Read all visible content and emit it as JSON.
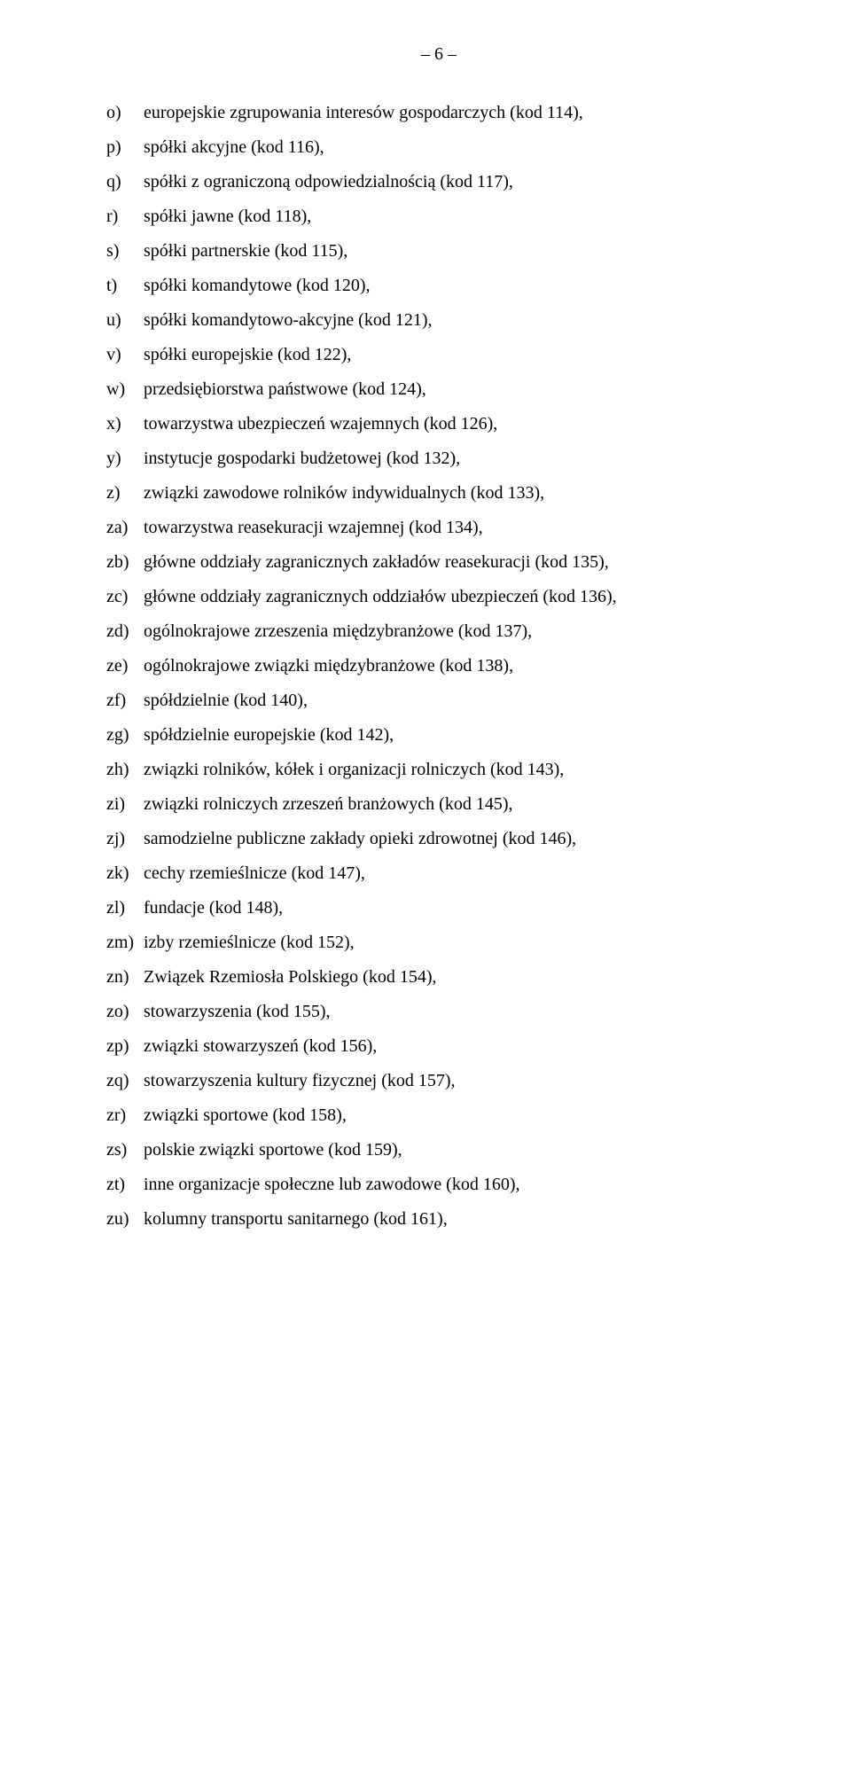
{
  "page_number": "– 6 –",
  "items": [
    {
      "marker": "o)",
      "text": "europejskie zgrupowania interesów gospodarczych (kod 114),"
    },
    {
      "marker": "p)",
      "text": "spółki akcyjne (kod 116),"
    },
    {
      "marker": "q)",
      "text": "spółki z ograniczoną odpowiedzialnością (kod 117),"
    },
    {
      "marker": "r)",
      "text": "spółki jawne (kod 118),"
    },
    {
      "marker": "s)",
      "text": "spółki partnerskie (kod 115),"
    },
    {
      "marker": "t)",
      "text": "spółki komandytowe (kod 120),"
    },
    {
      "marker": "u)",
      "text": "spółki komandytowo-akcyjne (kod 121),"
    },
    {
      "marker": "v)",
      "text": "spółki europejskie (kod 122),"
    },
    {
      "marker": "w)",
      "text": "przedsiębiorstwa państwowe (kod 124),"
    },
    {
      "marker": "x)",
      "text": "towarzystwa ubezpieczeń wzajemnych (kod 126),"
    },
    {
      "marker": "y)",
      "text": "instytucje gospodarki budżetowej (kod 132),"
    },
    {
      "marker": "z)",
      "text": "związki zawodowe rolników indywidualnych (kod 133),"
    },
    {
      "marker": "za)",
      "text": "towarzystwa reasekuracji wzajemnej (kod 134),"
    },
    {
      "marker": "zb)",
      "text": "główne oddziały zagranicznych zakładów reasekuracji (kod 135),"
    },
    {
      "marker": "zc)",
      "text": "główne oddziały zagranicznych oddziałów ubezpieczeń (kod 136),"
    },
    {
      "marker": "zd)",
      "text": "ogólnokrajowe zrzeszenia międzybranżowe (kod 137),"
    },
    {
      "marker": "ze)",
      "text": "ogólnokrajowe związki międzybranżowe (kod 138),"
    },
    {
      "marker": "zf)",
      "text": "spółdzielnie (kod 140),"
    },
    {
      "marker": "zg)",
      "text": "spółdzielnie europejskie (kod 142),"
    },
    {
      "marker": "zh)",
      "text": "związki rolników, kółek i organizacji rolniczych (kod 143),"
    },
    {
      "marker": "zi)",
      "text": "związki rolniczych zrzeszeń branżowych (kod 145),"
    },
    {
      "marker": "zj)",
      "text": "samodzielne publiczne zakłady opieki zdrowotnej (kod 146),"
    },
    {
      "marker": "zk)",
      "text": "cechy rzemieślnicze (kod 147),"
    },
    {
      "marker": "zl)",
      "text": "fundacje (kod 148),"
    },
    {
      "marker": "zm)",
      "text": "izby rzemieślnicze (kod 152),"
    },
    {
      "marker": "zn)",
      "text": "Związek Rzemiosła Polskiego (kod 154),"
    },
    {
      "marker": "zo)",
      "text": "stowarzyszenia (kod 155),"
    },
    {
      "marker": "zp)",
      "text": "związki stowarzyszeń (kod 156),"
    },
    {
      "marker": "zq)",
      "text": "stowarzyszenia kultury fizycznej (kod 157),"
    },
    {
      "marker": "zr)",
      "text": "związki sportowe (kod 158),"
    },
    {
      "marker": "zs)",
      "text": "polskie związki sportowe (kod 159),"
    },
    {
      "marker": "zt)",
      "text": "inne organizacje społeczne lub zawodowe (kod 160),"
    },
    {
      "marker": "zu)",
      "text": "kolumny transportu sanitarnego (kod 161),"
    }
  ],
  "typography": {
    "font_family": "Times New Roman",
    "font_size_pt": 15,
    "line_height": 1.9,
    "text_color": "#000000",
    "background_color": "#ffffff"
  }
}
